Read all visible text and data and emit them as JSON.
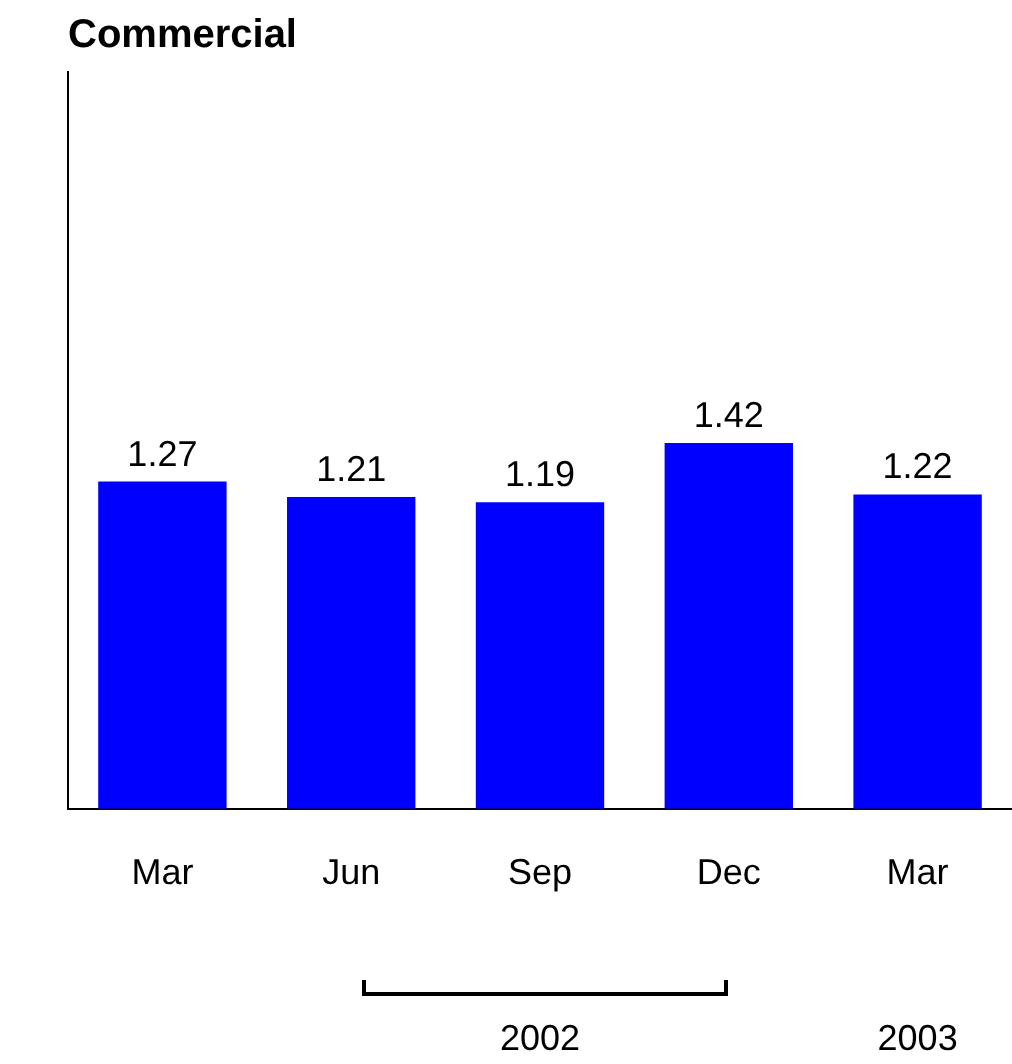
{
  "chart_data": {
    "type": "bar",
    "title": "Commercial",
    "categories": [
      "Mar",
      "Jun",
      "Sep",
      "Dec",
      "Mar"
    ],
    "values": [
      1.27,
      1.21,
      1.19,
      1.42,
      1.22
    ],
    "color": "#0000ff",
    "ylim": [
      0,
      2.86
    ],
    "tick_labels": "x",
    "data_labels": true,
    "grid": false,
    "legend": false,
    "annotations": [
      "2002",
      "2003"
    ]
  }
}
